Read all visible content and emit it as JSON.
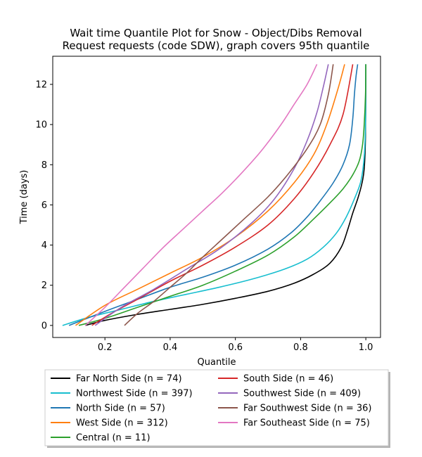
{
  "chart_data": {
    "type": "line",
    "title": "Wait time Quantile Plot for Snow - Object/Dibs Removal",
    "subtitle": "Request  requests (code SDW), graph covers 95th quantile",
    "xlabel": "Quantile",
    "ylabel": "Time (days)",
    "xlim": [
      0.04,
      1.045
    ],
    "ylim": [
      -0.6,
      13.4
    ],
    "xticks": [
      0.2,
      0.4,
      0.6,
      0.8,
      1.0
    ],
    "xtick_labels": [
      "0.2",
      "0.4",
      "0.6",
      "0.8",
      "1.0"
    ],
    "yticks": [
      0,
      2,
      4,
      6,
      8,
      10,
      12
    ],
    "ytick_labels": [
      "0",
      "2",
      "4",
      "6",
      "8",
      "10",
      "12"
    ],
    "grid": false,
    "legend_position": "below",
    "legend_columns": 2,
    "series": [
      {
        "name": "Far North Side (n = 74)",
        "color": "#000000",
        "x": [
          0.14,
          0.2,
          0.3,
          0.4,
          0.5,
          0.6,
          0.7,
          0.78,
          0.84,
          0.89,
          0.925,
          0.945,
          0.96,
          0.975,
          0.987,
          0.995,
          0.999,
          1.0
        ],
        "y": [
          0,
          0.25,
          0.55,
          0.8,
          1.05,
          1.35,
          1.7,
          2.1,
          2.55,
          3.1,
          3.9,
          4.8,
          5.6,
          6.3,
          7.0,
          7.8,
          9.5,
          13
        ]
      },
      {
        "name": "Northwest Side (n = 397)",
        "color": "#17becf",
        "x": [
          0.07,
          0.15,
          0.25,
          0.35,
          0.45,
          0.55,
          0.65,
          0.75,
          0.82,
          0.87,
          0.91,
          0.94,
          0.965,
          0.985,
          0.995,
          0.999,
          1.0
        ],
        "y": [
          0,
          0.4,
          0.8,
          1.2,
          1.55,
          1.9,
          2.3,
          2.8,
          3.3,
          3.9,
          4.6,
          5.4,
          6.3,
          7.2,
          8.4,
          10.0,
          13
        ]
      },
      {
        "name": "North Side (n = 57)",
        "color": "#1f77b4",
        "x": [
          0.09,
          0.2,
          0.3,
          0.4,
          0.5,
          0.6,
          0.7,
          0.77,
          0.82,
          0.86,
          0.9,
          0.93,
          0.95,
          0.96,
          0.965,
          0.97,
          0.975
        ],
        "y": [
          0,
          0.7,
          1.3,
          1.9,
          2.4,
          3.0,
          3.8,
          4.6,
          5.4,
          6.2,
          7.1,
          8.0,
          9.0,
          10.3,
          11.5,
          12.4,
          13
        ]
      },
      {
        "name": "West Side (n = 312)",
        "color": "#ff7f0e",
        "x": [
          0.11,
          0.2,
          0.3,
          0.4,
          0.5,
          0.6,
          0.7,
          0.78,
          0.84,
          0.88,
          0.915,
          0.935
        ],
        "y": [
          0,
          1.0,
          1.8,
          2.6,
          3.4,
          4.4,
          5.7,
          7.1,
          8.5,
          10.0,
          11.8,
          13
        ]
      },
      {
        "name": "Central (n = 11)",
        "color": "#2ca02c",
        "x": [
          0.12,
          0.2,
          0.3,
          0.4,
          0.5,
          0.6,
          0.7,
          0.78,
          0.84,
          0.89,
          0.93,
          0.96,
          0.98,
          0.99,
          0.995,
          0.999,
          1.0
        ],
        "y": [
          0,
          0.35,
          0.9,
          1.45,
          2.0,
          2.7,
          3.5,
          4.4,
          5.3,
          6.1,
          6.8,
          7.5,
          8.2,
          9.0,
          10.0,
          11.5,
          13
        ]
      },
      {
        "name": "South Side (n = 46)",
        "color": "#d62728",
        "x": [
          0.16,
          0.22,
          0.3,
          0.4,
          0.5,
          0.6,
          0.7,
          0.78,
          0.84,
          0.89,
          0.93,
          0.96
        ],
        "y": [
          0,
          0.6,
          1.3,
          2.2,
          3.0,
          3.9,
          5.0,
          6.3,
          7.6,
          9.0,
          10.5,
          13
        ]
      },
      {
        "name": "Southwest Side (n = 409)",
        "color": "#9467bd",
        "x": [
          0.17,
          0.25,
          0.35,
          0.45,
          0.55,
          0.65,
          0.72,
          0.78,
          0.82,
          0.85,
          0.87,
          0.885
        ],
        "y": [
          0,
          0.9,
          1.8,
          2.8,
          3.8,
          5.1,
          6.3,
          7.8,
          9.2,
          10.6,
          11.9,
          13
        ]
      },
      {
        "name": "Far Southwest Side (n = 36)",
        "color": "#8c564b",
        "x": [
          0.26,
          0.3,
          0.35,
          0.4,
          0.45,
          0.5,
          0.56,
          0.62,
          0.7,
          0.76,
          0.82,
          0.86,
          0.885,
          0.9
        ],
        "y": [
          0,
          0.6,
          1.2,
          1.9,
          2.6,
          3.4,
          4.3,
          5.2,
          6.4,
          7.5,
          8.8,
          10.0,
          11.5,
          13
        ]
      },
      {
        "name": "Far Southeast Side (n = 75)",
        "color": "#e377c2",
        "x": [
          0.14,
          0.2,
          0.26,
          0.32,
          0.38,
          0.44,
          0.5,
          0.56,
          0.62,
          0.68,
          0.74,
          0.78,
          0.82,
          0.85
        ],
        "y": [
          0,
          0.9,
          1.9,
          2.9,
          3.9,
          4.8,
          5.7,
          6.6,
          7.6,
          8.7,
          10.0,
          11.0,
          12.0,
          13
        ]
      }
    ]
  }
}
